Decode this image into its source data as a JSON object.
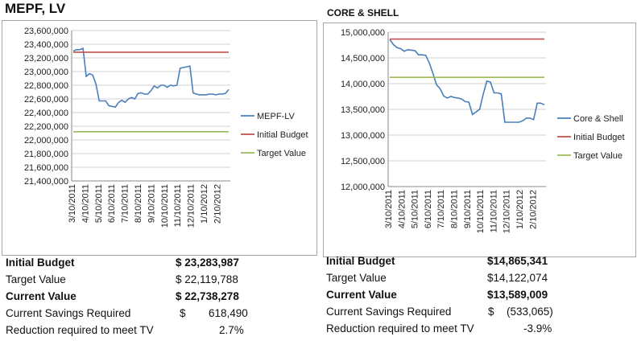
{
  "chart_data": [
    {
      "type": "line",
      "title": "MEPF, LV",
      "ylim": [
        21400000,
        23600000
      ],
      "y_ticks": [
        "21,400,000",
        "21,600,000",
        "21,800,000",
        "22,000,000",
        "22,200,000",
        "22,400,000",
        "22,600,000",
        "22,800,000",
        "23,000,000",
        "23,200,000",
        "23,400,000",
        "23,600,000"
      ],
      "x_tick_labels": [
        "3/10/2011",
        "4/10/2011",
        "5/10/2011",
        "6/10/2011",
        "7/10/2011",
        "8/10/2011",
        "9/10/2011",
        "10/10/2011",
        "11/10/2011",
        "12/10/2011",
        "1/10/2012",
        "2/10/2012"
      ],
      "grid": true,
      "legend": "right",
      "series": [
        {
          "name": "MEPF-LV",
          "color": "#4a7ebb",
          "values": [
            23300000,
            23320000,
            23320000,
            23340000,
            22930000,
            22970000,
            22950000,
            22820000,
            22570000,
            22570000,
            22570000,
            22500000,
            22490000,
            22480000,
            22550000,
            22580000,
            22550000,
            22600000,
            22620000,
            22600000,
            22680000,
            22690000,
            22670000,
            22670000,
            22720000,
            22790000,
            22760000,
            22800000,
            22800000,
            22770000,
            22800000,
            22790000,
            22800000,
            23050000,
            23060000,
            23070000,
            23080000,
            22690000,
            22670000,
            22660000,
            22660000,
            22660000,
            22670000,
            22670000,
            22660000,
            22670000,
            22670000,
            22680000,
            22738278
          ]
        },
        {
          "name": "Initial Budget",
          "color": "#c0504d",
          "values": [
            23283987,
            23283987
          ]
        },
        {
          "name": "Target Value",
          "color": "#9bbb59",
          "values": [
            22119788,
            22119788
          ]
        }
      ]
    },
    {
      "type": "line",
      "title": "CORE & SHELL",
      "ylim": [
        12000000,
        15000000
      ],
      "y_ticks": [
        "12,000,000",
        "12,500,000",
        "13,000,000",
        "13,500,000",
        "14,000,000",
        "14,500,000",
        "15,000,000"
      ],
      "x_tick_labels": [
        "3/10/2011",
        "4/10/2011",
        "5/10/2011",
        "6/10/2011",
        "7/10/2011",
        "8/10/2011",
        "9/10/2011",
        "10/10/2011",
        "11/10/2011",
        "12/10/2011",
        "1/10/2012",
        "2/10/2012"
      ],
      "grid": true,
      "legend": "right",
      "series": [
        {
          "name": "Core & Shell",
          "color": "#4a7ebb",
          "values": [
            14860000,
            14760000,
            14700000,
            14680000,
            14630000,
            14660000,
            14650000,
            14640000,
            14560000,
            14560000,
            14550000,
            14400000,
            14200000,
            13980000,
            13900000,
            13760000,
            13720000,
            13750000,
            13730000,
            13720000,
            13700000,
            13650000,
            13640000,
            13400000,
            13450000,
            13500000,
            13800000,
            14050000,
            14030000,
            13820000,
            13820000,
            13800000,
            13250000,
            13250000,
            13250000,
            13250000,
            13250000,
            13280000,
            13330000,
            13330000,
            13300000,
            13620000,
            13620000,
            13589009
          ]
        },
        {
          "name": "Initial Budget",
          "color": "#c0504d",
          "values": [
            14865341,
            14865341
          ]
        },
        {
          "name": "Target Value",
          "color": "#9bbb59",
          "values": [
            14122074,
            14122074
          ]
        }
      ]
    }
  ],
  "summary_left": {
    "rows": [
      {
        "label": "Initial Budget",
        "value": "$  23,283,987"
      },
      {
        "label": "Target Value",
        "value": "$  22,119,788"
      },
      {
        "label": "Current Value",
        "value": "$  22,738,278"
      },
      {
        "label": "Current Savings Required",
        "currency": "$",
        "value": "618,490"
      },
      {
        "label": "Reduction required to meet TV",
        "value": "2.7%"
      }
    ]
  },
  "summary_right": {
    "rows": [
      {
        "label": "Initial Budget",
        "value": "$14,865,341"
      },
      {
        "label": "Target Value",
        "value": "$14,122,074"
      },
      {
        "label": "Current Value",
        "value": "$13,589,009"
      },
      {
        "label": "Current Savings Required",
        "currency": "$",
        "value": "(533,065)"
      },
      {
        "label": "Reduction required to meet TV",
        "value": "-3.9%"
      }
    ]
  }
}
